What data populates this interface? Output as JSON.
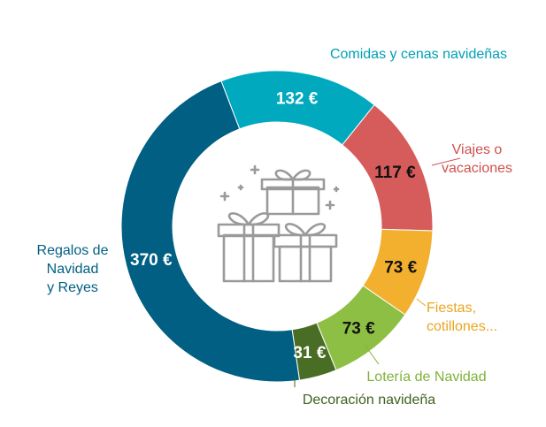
{
  "chart_data": {
    "type": "donut",
    "unit": "€",
    "slices": [
      {
        "label_lines": [
          "Comidas y cenas navideñas"
        ],
        "value": 132,
        "value_label": "132 €",
        "color": "#00a9bd",
        "label_color": "#00a0b5",
        "value_text_color": "#ffffff"
      },
      {
        "label_lines": [
          "Viajes o",
          "vacaciones"
        ],
        "value": 117,
        "value_label": "117 €",
        "color": "#d65b5b",
        "label_color": "#d0504f",
        "value_text_color": "#111111"
      },
      {
        "label_lines": [
          "Fiestas,",
          "cotillones..."
        ],
        "value": 73,
        "value_label": "73 €",
        "color": "#f2b02e",
        "label_color": "#e9a521",
        "value_text_color": "#111111"
      },
      {
        "label_lines": [
          "Lotería de Navidad"
        ],
        "value": 73,
        "value_label": "73 €",
        "color": "#8ebf45",
        "label_color": "#7fb23a",
        "value_text_color": "#111111"
      },
      {
        "label_lines": [
          "Decoración navideña"
        ],
        "value": 31,
        "value_label": "31 €",
        "color": "#4a6d25",
        "label_color": "#40611f",
        "value_text_color": "#ffffff"
      },
      {
        "label_lines": [
          "Regalos de",
          "Navidad",
          "y Reyes"
        ],
        "value": 370,
        "value_label": "370 €",
        "color": "#005f82",
        "label_color": "#005f82",
        "value_text_color": "#ffffff"
      }
    ],
    "center_icon": "gift-boxes-icon",
    "icon_color": "#9a9a9a"
  }
}
